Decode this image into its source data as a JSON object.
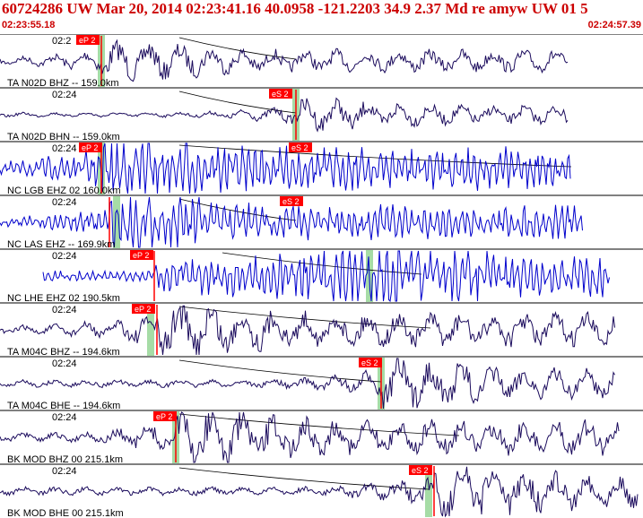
{
  "header": {
    "title": "60724286 UW Mar 20, 2014 02:23:41.16    40.0958 -121.2203 34.9 2.37 Md re amyw UW 01    5",
    "start_time": "02:23:55.18",
    "end_time": "02:24:57.39"
  },
  "colors": {
    "header_text": "#cc0000",
    "trace_short_period": "#0000cc",
    "trace_broadband": "#1a0a5c",
    "pick_marker": "#ff0000",
    "pick_window": "#a6dca6",
    "travel_time_curve": "#000000"
  },
  "traces": [
    {
      "time_label": "02:2",
      "station_label": "TA N02D BHZ -- 159.0km",
      "p_pick": "eP 2",
      "s_pick": "",
      "type": "broadband"
    },
    {
      "time_label": "02:24",
      "station_label": "TA N02D BHN -- 159.0km",
      "p_pick": "",
      "s_pick": "eS 2",
      "type": "broadband"
    },
    {
      "time_label": "02:24",
      "station_label": "NC LGB EHZ 02 160.0km",
      "p_pick": "eP 2",
      "s_pick": "eS 2",
      "type": "short_period"
    },
    {
      "time_label": "02:24",
      "station_label": "NC LAS EHZ -- 169.9km",
      "p_pick": "",
      "s_pick": "eS 2",
      "type": "short_period"
    },
    {
      "time_label": "02:24",
      "station_label": "NC LHE EHZ 02 190.5km",
      "p_pick": "eP 2",
      "s_pick": "",
      "type": "short_period"
    },
    {
      "time_label": "02:24",
      "station_label": "TA M04C BHZ -- 194.6km",
      "p_pick": "eP 2",
      "s_pick": "",
      "type": "broadband"
    },
    {
      "time_label": "02:24",
      "station_label": "TA M04C BHE -- 194.6km",
      "p_pick": "",
      "s_pick": "eS 2",
      "type": "broadband"
    },
    {
      "time_label": "02:24",
      "station_label": "BK MOD BHZ 00 215.1km",
      "p_pick": "eP 2",
      "s_pick": "",
      "type": "broadband"
    },
    {
      "time_label": "02:24",
      "station_label": "BK MOD BHE 00 215.1km",
      "p_pick": "",
      "s_pick": "eS 2",
      "type": "broadband"
    }
  ]
}
